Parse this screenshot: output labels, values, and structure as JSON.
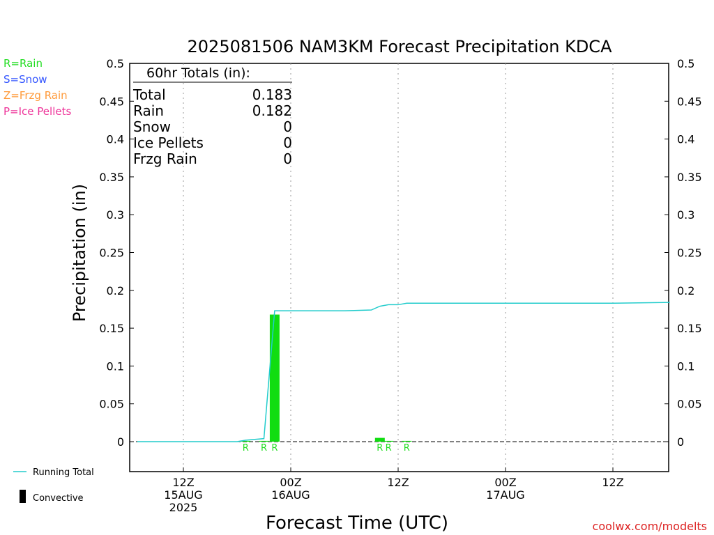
{
  "chart_data": {
    "type": "bar",
    "title": "2025081506 NAM3KM Forecast Precipitation KDCA",
    "ylabel": "Precipitation (in)",
    "xlabel": "Forecast Time (UTC)",
    "ylim": [
      -0.04,
      0.5
    ],
    "y_ticks": [
      "0.5",
      "0.45",
      "0.4",
      "0.35",
      "0.3",
      "0.25",
      "0.2",
      "0.15",
      "0.1",
      "0.05",
      "0"
    ],
    "x_range_hours": [
      -12,
      38
    ],
    "x_ticks": [
      {
        "h": 0,
        "line1": "12Z",
        "line2": "15AUG",
        "line3": "2025"
      },
      {
        "h": 10,
        "line1": "00Z",
        "line2": "16AUG",
        "line3": ""
      },
      {
        "h": 20,
        "line1": "12Z",
        "line2": "",
        "line3": ""
      },
      {
        "h": 30,
        "line1": "00Z",
        "line2": "17AUG",
        "line3": ""
      },
      {
        "h": 40,
        "line1": "12Z",
        "line2": "",
        "line3": ""
      }
    ],
    "grid": true,
    "ptype_legend": [
      {
        "label": "R=Rain",
        "color": "#22dd22"
      },
      {
        "label": "S=Snow",
        "color": "#3355ff"
      },
      {
        "label": "Z=Frzg Rain",
        "color": "#ff9a3a"
      },
      {
        "label": "P=Ice Pellets",
        "color": "#ee3399"
      }
    ],
    "totals_box": {
      "heading": "60hr Totals (in):",
      "rows": [
        {
          "label": "Total",
          "value": "0.183"
        },
        {
          "label": "Rain",
          "value": "0.182"
        },
        {
          "label": "Snow",
          "value": "0"
        },
        {
          "label": "Ice Pellets",
          "value": "0"
        },
        {
          "label": "Frzg Rain",
          "value": "0"
        }
      ]
    },
    "bars": [
      {
        "x": 5.8,
        "value": 0.001,
        "type": "R"
      },
      {
        "x": 7.5,
        "value": 0.001,
        "type": "R"
      },
      {
        "x": 8.5,
        "value": 0.168,
        "type": "R"
      },
      {
        "x": 18.3,
        "value": 0.005,
        "type": "R"
      },
      {
        "x": 19.1,
        "value": 0.001,
        "type": "R"
      },
      {
        "x": 20.8,
        "value": 0.001,
        "type": "R"
      }
    ],
    "running_total": {
      "name": "Running Total",
      "color": "#22cccc",
      "x": [
        -4.3,
        5,
        5.8,
        7.5,
        8.5,
        15,
        17.5,
        18.3,
        19.1,
        20,
        20.8,
        25,
        30,
        35,
        40,
        45.3
      ],
      "y": [
        0,
        0,
        0.002,
        0.004,
        0.173,
        0.173,
        0.174,
        0.179,
        0.181,
        0.181,
        0.183,
        0.183,
        0.183,
        0.183,
        0.183,
        0.184
      ]
    },
    "legend": [
      {
        "label": "Running Total",
        "color": "#22cccc",
        "kind": "line"
      },
      {
        "label": "Convective",
        "color": "#000000",
        "kind": "bar"
      }
    ],
    "credit": "coolwx.com/modelts"
  }
}
